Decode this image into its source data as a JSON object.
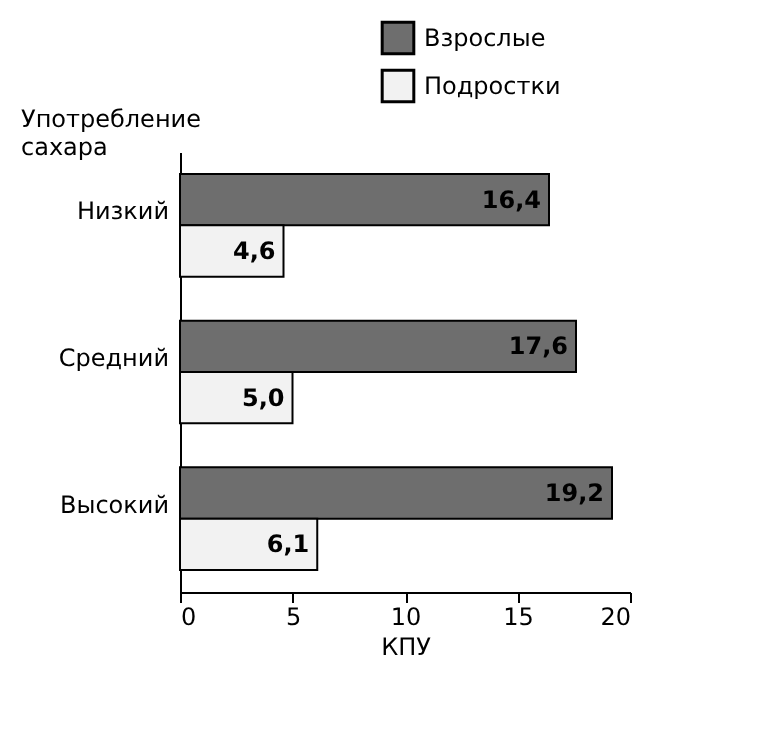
{
  "chart_data": {
    "type": "bar",
    "orientation": "horizontal",
    "ylabel": "Употребление сахара",
    "xlabel": "КПУ",
    "categories": [
      "Низкий",
      "Средний",
      "Высокий"
    ],
    "series": [
      {
        "name": "Взрослые",
        "color": "#6e6e6e",
        "values": [
          16.4,
          17.6,
          19.2
        ],
        "value_labels": [
          "16,4",
          "17,6",
          "19,2"
        ]
      },
      {
        "name": "Подростки",
        "color": "#f2f2f2",
        "values": [
          4.6,
          5.0,
          6.1
        ],
        "value_labels": [
          "4,6",
          "5,0",
          "6,1"
        ]
      }
    ],
    "xlim": [
      0,
      20
    ],
    "xticks": [
      0,
      5,
      10,
      15,
      20
    ],
    "legend": "top",
    "grid": false
  }
}
